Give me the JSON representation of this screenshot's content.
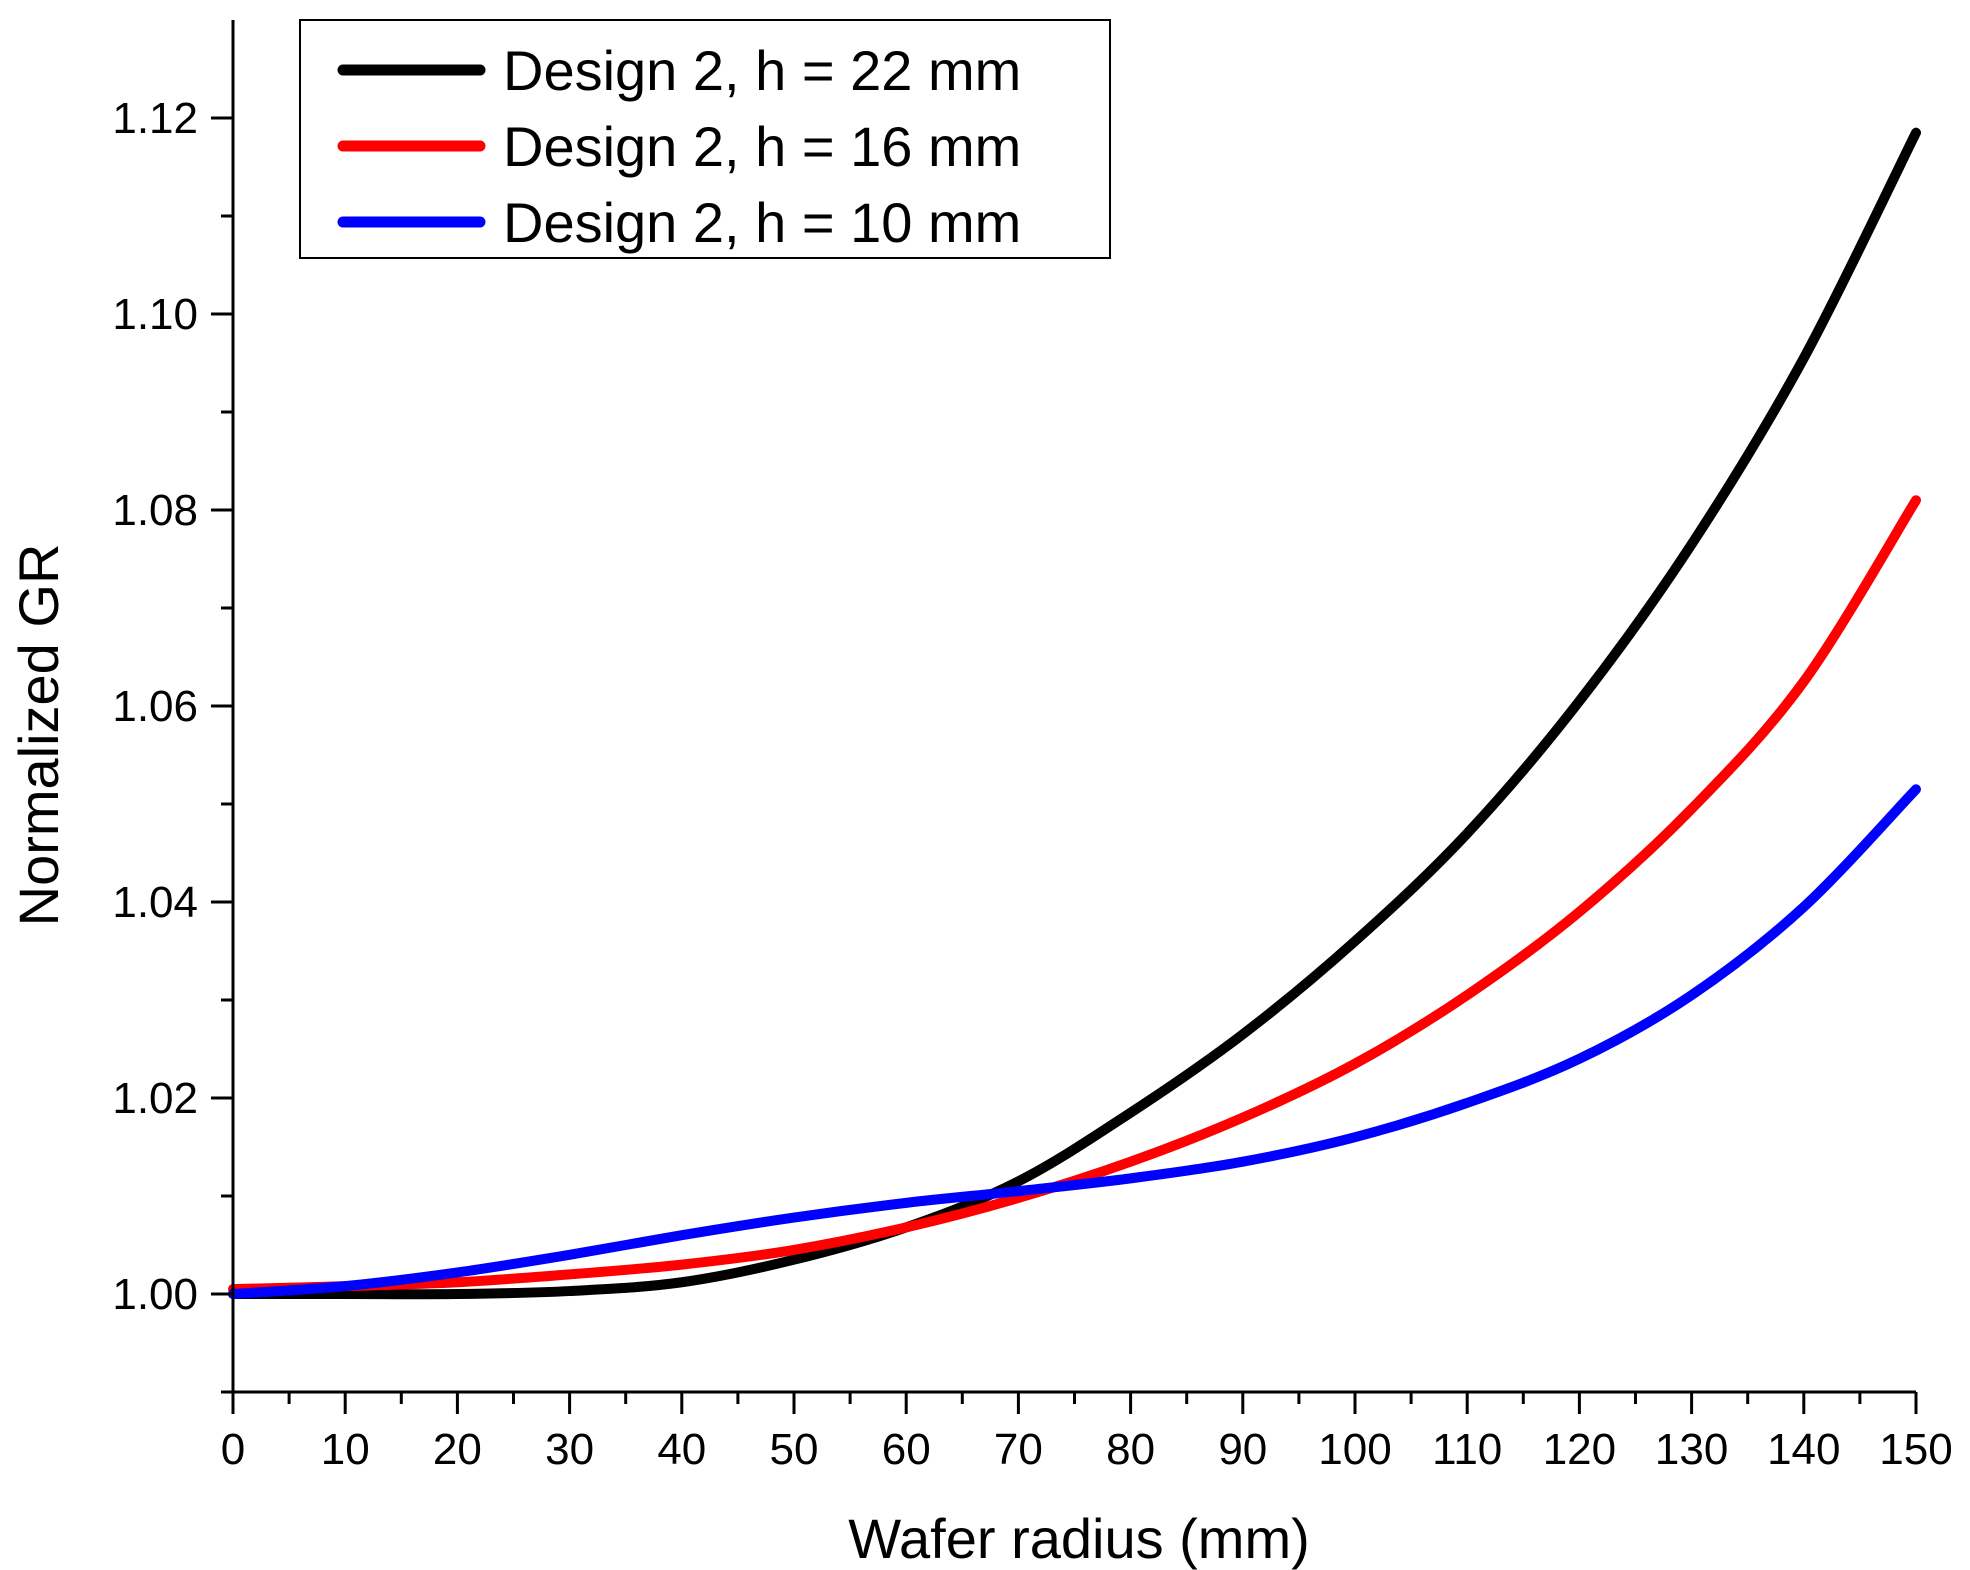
{
  "chart_data": {
    "type": "line",
    "title": "",
    "xlabel": "Wafer radius (mm)",
    "ylabel": "Normalized GR",
    "xlim": [
      0,
      150
    ],
    "ylim": [
      0.99,
      1.13
    ],
    "x_ticks": [
      0,
      10,
      20,
      30,
      40,
      50,
      60,
      70,
      80,
      90,
      100,
      110,
      120,
      130,
      140,
      150
    ],
    "x_tick_labels": [
      "0",
      "10",
      "20",
      "30",
      "40",
      "50",
      "60",
      "70",
      "80",
      "90",
      "100",
      "110",
      "120",
      "130",
      "140",
      "150"
    ],
    "y_ticks": [
      1.0,
      1.02,
      1.04,
      1.06,
      1.08,
      1.1,
      1.12
    ],
    "y_tick_labels": [
      "1.00",
      "1.02",
      "1.04",
      "1.06",
      "1.08",
      "1.10",
      "1.12"
    ],
    "grid": false,
    "legend_position": "top-left",
    "x": [
      0,
      10,
      20,
      30,
      40,
      50,
      60,
      70,
      80,
      90,
      100,
      110,
      120,
      130,
      140,
      150
    ],
    "series": [
      {
        "name": "Design 2, h = 22 mm",
        "color": "#000000",
        "values": [
          1.0,
          1.0,
          1.0,
          1.0003,
          1.0012,
          1.0035,
          1.0068,
          1.0115,
          1.0185,
          1.0265,
          1.036,
          1.047,
          1.0605,
          1.0765,
          1.0955,
          1.1185
        ]
      },
      {
        "name": "Design 2, h = 16 mm",
        "color": "#ff0000",
        "values": [
          1.0005,
          1.0008,
          1.0012,
          1.002,
          1.003,
          1.0045,
          1.0068,
          1.0098,
          1.0135,
          1.018,
          1.0235,
          1.0305,
          1.039,
          1.0495,
          1.0625,
          1.081
        ]
      },
      {
        "name": "Design 2, h = 10 mm",
        "color": "#0000ff",
        "values": [
          1.0,
          1.0008,
          1.0022,
          1.004,
          1.006,
          1.0078,
          1.0093,
          1.0105,
          1.0118,
          1.0135,
          1.016,
          1.0195,
          1.024,
          1.0305,
          1.0395,
          1.0515
        ]
      }
    ]
  }
}
